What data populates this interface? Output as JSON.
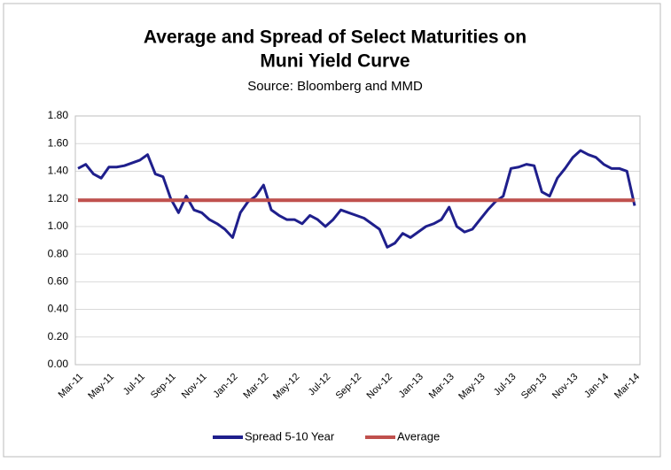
{
  "chart_data": {
    "type": "line",
    "title": [
      "Average and Spread of Select Maturities on",
      "Muni Yield Curve"
    ],
    "subtitle": "Source: Bloomberg and MMD",
    "categories": [
      "Mar-11",
      null,
      null,
      null,
      "May-11",
      null,
      null,
      null,
      "Jul-11",
      null,
      null,
      null,
      "Sep-11",
      null,
      null,
      null,
      "Nov-11",
      null,
      null,
      null,
      "Jan-12",
      null,
      null,
      null,
      "Mar-12",
      null,
      null,
      null,
      "May-12",
      null,
      null,
      null,
      "Jul-12",
      null,
      null,
      null,
      "Sep-12",
      null,
      null,
      null,
      "Nov-12",
      null,
      null,
      null,
      "Jan-13",
      null,
      null,
      null,
      "Mar-13",
      null,
      null,
      null,
      "May-13",
      null,
      null,
      null,
      "Jul-13",
      null,
      null,
      null,
      "Sep-13",
      null,
      null,
      null,
      "Nov-13",
      null,
      null,
      null,
      "Jan-14",
      null,
      null,
      null,
      "Mar-14"
    ],
    "series": [
      {
        "name": "Spread 5-10 Year",
        "color": "#1f1f8c",
        "values": [
          1.42,
          1.45,
          1.38,
          1.35,
          1.43,
          1.43,
          1.44,
          1.46,
          1.48,
          1.52,
          1.38,
          1.36,
          1.2,
          1.1,
          1.22,
          1.12,
          1.1,
          1.05,
          1.02,
          0.98,
          0.92,
          1.1,
          1.18,
          1.22,
          1.3,
          1.12,
          1.08,
          1.05,
          1.05,
          1.02,
          1.08,
          1.05,
          1.0,
          1.05,
          1.12,
          1.1,
          1.08,
          1.06,
          1.02,
          0.98,
          0.85,
          0.88,
          0.95,
          0.92,
          0.96,
          1.0,
          1.02,
          1.05,
          1.14,
          1.0,
          0.96,
          0.98,
          1.05,
          1.12,
          1.18,
          1.22,
          1.42,
          1.43,
          1.45,
          1.44,
          1.25,
          1.22,
          1.35,
          1.42,
          1.5,
          1.55,
          1.52,
          1.5,
          1.45,
          1.42,
          1.42,
          1.4,
          1.15
        ]
      },
      {
        "name": "Average",
        "color": "#c0504d",
        "values": [
          1.19,
          1.19,
          1.19,
          1.19,
          1.19,
          1.19,
          1.19,
          1.19,
          1.19,
          1.19,
          1.19,
          1.19,
          1.19,
          1.19,
          1.19,
          1.19,
          1.19,
          1.19,
          1.19,
          1.19,
          1.19,
          1.19,
          1.19,
          1.19,
          1.19,
          1.19,
          1.19,
          1.19,
          1.19,
          1.19,
          1.19,
          1.19,
          1.19,
          1.19,
          1.19,
          1.19,
          1.19,
          1.19,
          1.19,
          1.19,
          1.19,
          1.19,
          1.19,
          1.19,
          1.19,
          1.19,
          1.19,
          1.19,
          1.19,
          1.19,
          1.19,
          1.19,
          1.19,
          1.19,
          1.19,
          1.19,
          1.19,
          1.19,
          1.19,
          1.19,
          1.19,
          1.19,
          1.19,
          1.19,
          1.19,
          1.19,
          1.19,
          1.19,
          1.19,
          1.19,
          1.19,
          1.19,
          1.19
        ]
      }
    ],
    "ylim": [
      0,
      1.8
    ],
    "yticks": [
      {
        "value": 0,
        "label": "0.00"
      },
      {
        "value": 0.2,
        "label": "0.20"
      },
      {
        "value": 0.4,
        "label": "0.40"
      },
      {
        "value": 0.6,
        "label": "0.60"
      },
      {
        "value": 0.8,
        "label": "0.80"
      },
      {
        "value": 1,
        "label": "1.00"
      },
      {
        "value": 1.2,
        "label": "1.20"
      },
      {
        "value": 1.4,
        "label": "1.40"
      },
      {
        "value": 1.6,
        "label": "1.60"
      },
      {
        "value": 1.8,
        "label": "1.80"
      }
    ],
    "grid": true,
    "legend": "bottom"
  }
}
